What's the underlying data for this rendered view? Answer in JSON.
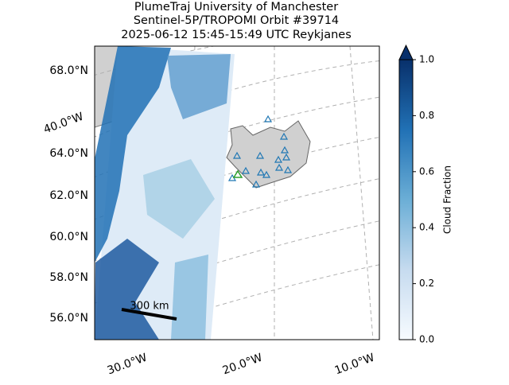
{
  "title": [
    "PlumeTraj    University of Manchester",
    "Sentinel-5P/TROPOMI Orbit #39714",
    "2025-06-12   15:45-15:49 UTC   Reykjanes"
  ],
  "lat_labels": [
    "68.0°N",
    "64.0°N",
    "62.0°N",
    "60.0°N",
    "58.0°N",
    "56.0°N"
  ],
  "left_lon_label": "40.0°W",
  "bottom_lon_labels": [
    "30.0°W",
    "20.0°W",
    "10.0°W"
  ],
  "scale_bar": "300 km",
  "colorbar": {
    "label": "Cloud Fraction",
    "lim": [
      0,
      1
    ],
    "ticks": [
      {
        "value": 0,
        "label": "0.0"
      },
      {
        "value": 0.2,
        "label": "0.2"
      },
      {
        "value": 0.4,
        "label": "0.4"
      },
      {
        "value": 0.6,
        "label": "0.6"
      },
      {
        "value": 0.8,
        "label": "0.8"
      },
      {
        "value": 1,
        "label": "1.0"
      }
    ]
  }
}
